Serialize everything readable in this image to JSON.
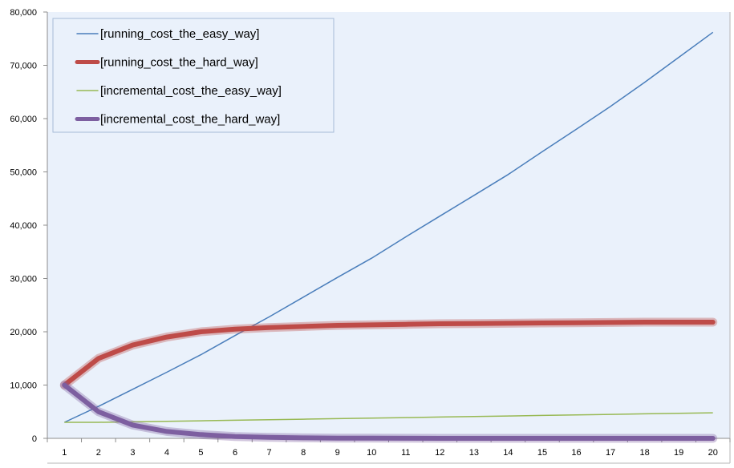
{
  "chart_data": {
    "type": "line",
    "title": "",
    "xlabel": "",
    "ylabel": "",
    "x": [
      1,
      2,
      3,
      4,
      5,
      6,
      7,
      8,
      9,
      10,
      11,
      12,
      13,
      14,
      15,
      16,
      17,
      18,
      19,
      20
    ],
    "x_tick_labels": [
      "1",
      "2",
      "3",
      "4",
      "5",
      "6",
      "7",
      "8",
      "9",
      "10",
      "11",
      "12",
      "13",
      "14",
      "15",
      "16",
      "17",
      "18",
      "19",
      "20"
    ],
    "ylim": [
      0,
      80000
    ],
    "y_tick_labels": [
      "0",
      "10,000",
      "20,000",
      "30,000",
      "40,000",
      "50,000",
      "60,000",
      "70,000",
      "80,000"
    ],
    "y_tick_values": [
      0,
      10000,
      20000,
      30000,
      40000,
      50000,
      60000,
      70000,
      80000
    ],
    "grid": false,
    "legend_position": "top-left",
    "series": [
      {
        "name": "[running_cost_the_easy_way]",
        "color": "#4a7ebb",
        "style": "thin",
        "values": [
          3000,
          6000,
          9200,
          12400,
          15700,
          19300,
          22800,
          26500,
          30200,
          33800,
          37800,
          41700,
          45600,
          49500,
          53800,
          58000,
          62300,
          66800,
          71500,
          76200
        ]
      },
      {
        "name": "[running_cost_the_hard_way]",
        "color": "#be4b48",
        "style": "thick",
        "values": [
          10000,
          15000,
          17500,
          19000,
          20000,
          20500,
          20800,
          21000,
          21200,
          21300,
          21400,
          21500,
          21550,
          21600,
          21650,
          21700,
          21750,
          21800,
          21800,
          21800
        ]
      },
      {
        "name": "[incremental_cost_the_easy_way]",
        "color": "#98b954",
        "style": "thin",
        "values": [
          3000,
          3000,
          3100,
          3200,
          3300,
          3400,
          3500,
          3600,
          3700,
          3800,
          3900,
          4000,
          4100,
          4200,
          4300,
          4400,
          4500,
          4600,
          4700,
          4800
        ]
      },
      {
        "name": "[incremental_cost_the_hard_way]",
        "color": "#7d5fa0",
        "style": "thick",
        "values": [
          10000,
          5000,
          2500,
          1300,
          700,
          350,
          180,
          90,
          50,
          25,
          12,
          6,
          3,
          2,
          1,
          0,
          0,
          0,
          0,
          0
        ]
      }
    ]
  }
}
